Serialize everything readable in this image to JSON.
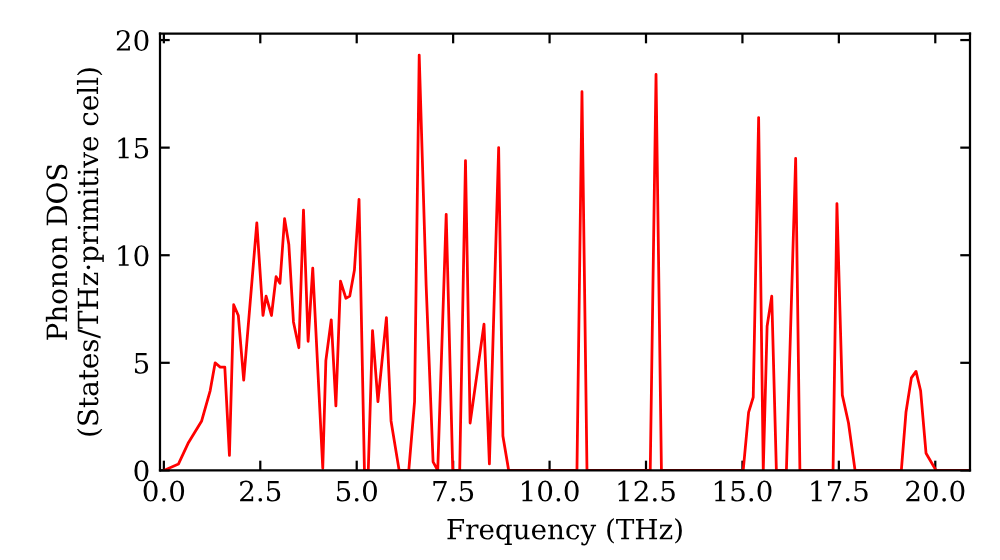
{
  "chart_data": {
    "type": "line",
    "xlabel": "Frequency (THz)",
    "ylabel": "Phonon DOS\n(States/THz·primitive cell)",
    "x": [
      0,
      0.38,
      0.64,
      0.98,
      1.2,
      1.33,
      1.46,
      1.58,
      1.7,
      1.81,
      1.93,
      2.07,
      2.41,
      2.57,
      2.65,
      2.79,
      2.91,
      3.01,
      3.13,
      3.24,
      3.36,
      3.5,
      3.62,
      3.74,
      3.86,
      4.12,
      4.2,
      4.34,
      4.46,
      4.58,
      4.72,
      4.82,
      4.94,
      5.06,
      5.2,
      5.3,
      5.41,
      5.55,
      5.77,
      5.89,
      6.1,
      6.35,
      6.5,
      6.62,
      6.8,
      6.98,
      7.1,
      7.32,
      7.49,
      7.67,
      7.82,
      7.94,
      8.3,
      8.44,
      8.68,
      8.79,
      8.94,
      10.71,
      10.84,
      10.97,
      12.61,
      12.76,
      12.9,
      15.02,
      15.16,
      15.28,
      15.42,
      15.54,
      15.64,
      15.76,
      15.88,
      16.14,
      16.38,
      16.49,
      17.35,
      17.45,
      17.59,
      17.75,
      17.92,
      19.12,
      19.24,
      19.38,
      19.5,
      19.62,
      19.76,
      20.02,
      20.85
    ],
    "series": [
      {
        "color": "#ff0000",
        "values": [
          0,
          0.3,
          1.3,
          2.3,
          3.7,
          5.0,
          4.8,
          4.8,
          0.7,
          7.7,
          7.2,
          4.2,
          11.5,
          7.2,
          8.1,
          7.2,
          9.0,
          8.7,
          11.7,
          10.5,
          6.9,
          5.7,
          12.1,
          6.0,
          9.4,
          0.1,
          5.1,
          7.0,
          3.0,
          8.8,
          8.0,
          8.1,
          9.3,
          12.6,
          0,
          0,
          6.5,
          3.2,
          7.1,
          2.3,
          0,
          0,
          3.2,
          19.3,
          8.6,
          0.4,
          0,
          11.9,
          0,
          0,
          14.4,
          2.2,
          6.8,
          0.3,
          15.0,
          1.6,
          0,
          0,
          17.6,
          0,
          0,
          18.4,
          0,
          0,
          2.7,
          3.4,
          16.4,
          0,
          6.7,
          8.1,
          0,
          0,
          14.5,
          0,
          0,
          12.4,
          3.5,
          2.2,
          0,
          0,
          2.7,
          4.3,
          4.6,
          3.7,
          0.8,
          0,
          0
        ]
      }
    ],
    "xlim": [
      -0.1,
      20.9
    ],
    "ylim": [
      0,
      20.3
    ],
    "xticks": [
      {
        "value": 0,
        "label": "0.0"
      },
      {
        "value": 2.5,
        "label": "2.5"
      },
      {
        "value": 5,
        "label": "5.0"
      },
      {
        "value": 7.5,
        "label": "7.5"
      },
      {
        "value": 10,
        "label": "10.0"
      },
      {
        "value": 12.5,
        "label": "12.5"
      },
      {
        "value": 15,
        "label": "15.0"
      },
      {
        "value": 17.5,
        "label": "17.5"
      },
      {
        "value": 20,
        "label": "20.0"
      }
    ],
    "yticks": [
      0,
      5,
      10,
      15,
      20
    ],
    "grid": false,
    "legend": false,
    "marker": "none",
    "line_style": "solid"
  }
}
